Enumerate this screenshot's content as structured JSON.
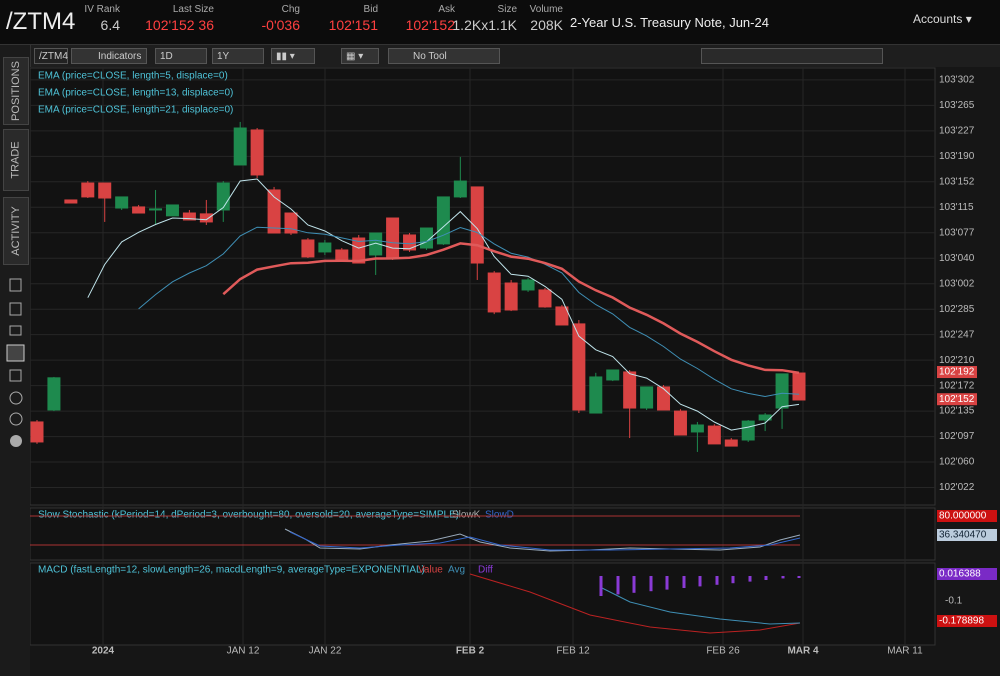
{
  "header": {
    "symbol": "/ZTM4",
    "fields": [
      {
        "label": "IV Rank",
        "value": "6.4"
      },
      {
        "label": "Last Size",
        "value": "102'152 36"
      },
      {
        "label": "Chg",
        "value": "-0'036"
      },
      {
        "label": "Bid",
        "value": "102'151"
      },
      {
        "label": "Ask",
        "value": "102'152"
      },
      {
        "label": "Size",
        "value": "1.2Kx1.1K"
      },
      {
        "label": "Volume",
        "value": "208K"
      }
    ],
    "description": "2-Year U.S. Treasury Note, Jun-24",
    "accounts": "Accounts"
  },
  "sidebar": {
    "tabs": [
      "POSITIONS",
      "TRADE",
      "ACTIVITY"
    ]
  },
  "toolbar": {
    "symbol": "/ZTM4",
    "indicators": "Indicators",
    "period": "1D",
    "range": "1Y",
    "tool": "No Tool"
  },
  "chart_data": {
    "type": "candlestick",
    "studies": [
      "EMA (price=CLOSE, length=5, displace=0)",
      "EMA (price=CLOSE, length=13, displace=0)",
      "EMA (price=CLOSE, length=21, displace=0)"
    ],
    "up_color": "#1e8a4e",
    "down_color": "#d94343",
    "ylim": [
      101.99,
      104.0
    ],
    "yticks": [
      {
        "value": 102.0703,
        "label": "102'022"
      },
      {
        "value": 102.1875,
        "label": "102'060"
      },
      {
        "value": 102.3047,
        "label": "102'097"
      },
      {
        "value": 102.4219,
        "label": "102'135"
      },
      {
        "value": 102.5391,
        "label": "102'172"
      },
      {
        "value": 102.6563,
        "label": "102'210"
      },
      {
        "value": 102.7734,
        "label": "102'247"
      },
      {
        "value": 102.8906,
        "label": "102'285"
      },
      {
        "value": 103.0078,
        "label": "103'002"
      },
      {
        "value": 103.125,
        "label": "103'040"
      },
      {
        "value": 103.2422,
        "label": "103'077"
      },
      {
        "value": 103.3594,
        "label": "103'115"
      },
      {
        "value": 103.4766,
        "label": "103'152"
      },
      {
        "value": 103.5938,
        "label": "103'190"
      },
      {
        "value": 103.7109,
        "label": "103'227"
      },
      {
        "value": 103.8281,
        "label": "103'265"
      },
      {
        "value": 103.9453,
        "label": "103'302"
      }
    ],
    "price_tags": [
      {
        "value": 102.6016,
        "label": "102'192",
        "color": "#d94343"
      },
      {
        "value": 102.4766,
        "label": "102'152",
        "color": "#d94343"
      }
    ],
    "x_labels": [
      "2024",
      "JAN 12",
      "JAN 22",
      "FEB 2",
      "FEB 12",
      "FEB 26",
      "MAR 4",
      "MAR 11"
    ],
    "open": [
      102.372,
      102.427,
      103.393,
      103.471,
      103.471,
      103.356,
      103.361,
      103.347,
      103.32,
      103.333,
      103.329,
      103.347,
      103.554,
      103.715,
      103.439,
      103.333,
      103.209,
      103.154,
      103.163,
      103.218,
      103.14,
      103.31,
      103.232,
      103.172,
      103.191,
      103.407,
      103.453,
      103.057,
      103.011,
      102.979,
      102.979,
      102.901,
      102.823,
      102.413,
      102.565,
      102.602,
      102.436,
      102.533,
      102.422,
      102.326,
      102.353,
      102.289,
      102.289,
      102.381,
      102.436,
      102.597
    ],
    "high": [
      102.381,
      102.579,
      103.393,
      103.48,
      103.471,
      103.407,
      103.37,
      103.439,
      103.37,
      103.347,
      103.393,
      103.48,
      103.752,
      103.724,
      103.453,
      103.333,
      103.218,
      103.209,
      103.172,
      103.232,
      103.241,
      103.31,
      103.241,
      103.264,
      103.407,
      103.591,
      103.453,
      103.066,
      103.025,
      103.034,
      102.988,
      102.91,
      102.841,
      102.598,
      102.611,
      102.611,
      102.533,
      102.542,
      102.431,
      102.372,
      102.362,
      102.298,
      102.381,
      102.413,
      102.593,
      102.597
    ],
    "low": [
      102.271,
      102.422,
      103.379,
      103.402,
      103.292,
      103.347,
      103.333,
      103.278,
      103.32,
      103.301,
      103.278,
      103.292,
      103.554,
      103.494,
      103.241,
      103.232,
      103.126,
      103.14,
      103.117,
      103.103,
      103.048,
      103.117,
      103.154,
      103.163,
      103.186,
      103.402,
      103.025,
      102.868,
      102.882,
      102.97,
      102.897,
      102.818,
      102.413,
      102.413,
      102.56,
      102.298,
      102.427,
      102.427,
      102.312,
      102.234,
      102.271,
      102.261,
      102.28,
      102.33,
      102.34,
      102.473
    ],
    "close": [
      102.28,
      102.575,
      103.379,
      103.407,
      103.402,
      103.407,
      103.333,
      103.352,
      103.37,
      103.301,
      103.292,
      103.471,
      103.724,
      103.508,
      103.241,
      103.241,
      103.131,
      103.195,
      103.117,
      103.103,
      103.241,
      103.126,
      103.163,
      103.264,
      103.407,
      103.48,
      103.103,
      102.878,
      102.887,
      103.025,
      102.901,
      102.818,
      102.427,
      102.579,
      102.611,
      102.436,
      102.533,
      102.427,
      102.312,
      102.358,
      102.271,
      102.261,
      102.376,
      102.404,
      102.593,
      102.473
    ],
    "stochastic": {
      "title": "Slow Stochastic (kPeriod=14, dPeriod=3, overbought=80, oversold=20, averageType=SIMPLE)",
      "legend": [
        "SlowK",
        "SlowD"
      ],
      "labels": [
        "80.000000",
        "36.340470"
      ]
    },
    "macd": {
      "title": "MACD (fastLength=12, slowLength=26, macdLength=9, averageType=EXPONENTIAL)",
      "legend": [
        "Value",
        "Avg",
        "Diff"
      ],
      "labels": [
        "0.016388",
        "-0.1",
        "-0.178898"
      ]
    }
  }
}
